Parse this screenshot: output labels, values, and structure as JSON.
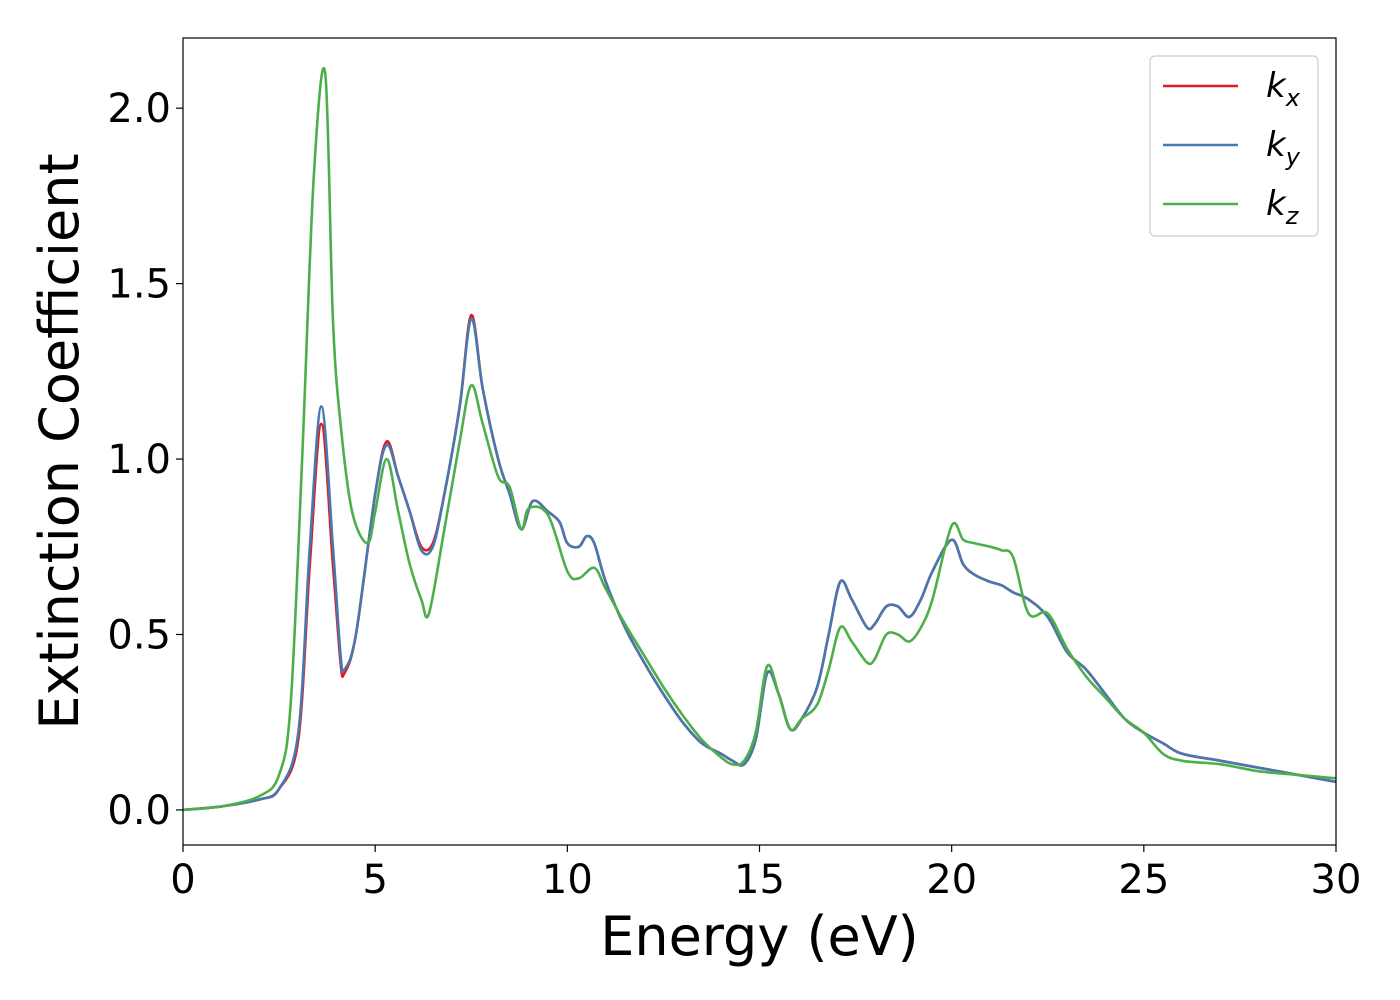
{
  "chart_data": {
    "type": "line",
    "xlabel": "Energy (eV)",
    "ylabel": "Extinction Coefficient",
    "xlim": [
      0,
      30
    ],
    "ylim": [
      -0.1,
      2.2
    ],
    "xticks": [
      0,
      5,
      10,
      15,
      20,
      25,
      30
    ],
    "xtick_labels": [
      "0",
      "5",
      "10",
      "15",
      "20",
      "25",
      "30"
    ],
    "yticks": [
      0.0,
      0.5,
      1.0,
      1.5,
      2.0
    ],
    "ytick_labels": [
      "0.0",
      "0.5",
      "1.0",
      "1.5",
      "2.0"
    ],
    "grid": false,
    "legend_position": "top-right",
    "series": [
      {
        "name": "k_x",
        "legend_base": "k",
        "legend_sub": "x",
        "color": "#e41a1c",
        "x": [
          0,
          1,
          2,
          2.5,
          3,
          3.3,
          3.6,
          3.9,
          4.1,
          4.2,
          4.5,
          5.0,
          5.3,
          5.6,
          5.9,
          6.2,
          6.5,
          6.8,
          7.2,
          7.5,
          7.8,
          8.2,
          8.5,
          8.8,
          9.1,
          9.5,
          9.8,
          10.0,
          10.3,
          10.5,
          10.7,
          11.0,
          11.5,
          12.0,
          12.5,
          13.0,
          13.5,
          14.0,
          14.3,
          14.6,
          14.9,
          15.2,
          15.5,
          15.8,
          16.1,
          16.5,
          16.8,
          17.1,
          17.4,
          17.8,
          18.0,
          18.3,
          18.6,
          18.9,
          19.2,
          19.5,
          20.0,
          20.3,
          20.6,
          21.0,
          21.3,
          21.6,
          22.0,
          22.5,
          23.0,
          23.5,
          24.0,
          24.5,
          25.0,
          25.5,
          26.0,
          27.0,
          28.0,
          29.0,
          30.0
        ],
        "values": [
          0.0,
          0.01,
          0.03,
          0.06,
          0.2,
          0.7,
          1.1,
          0.7,
          0.42,
          0.39,
          0.5,
          0.9,
          1.05,
          0.95,
          0.85,
          0.75,
          0.76,
          0.9,
          1.15,
          1.41,
          1.2,
          1.0,
          0.9,
          0.8,
          0.88,
          0.85,
          0.82,
          0.76,
          0.75,
          0.78,
          0.76,
          0.65,
          0.52,
          0.42,
          0.33,
          0.25,
          0.19,
          0.16,
          0.14,
          0.13,
          0.2,
          0.39,
          0.33,
          0.23,
          0.26,
          0.35,
          0.5,
          0.65,
          0.6,
          0.52,
          0.53,
          0.58,
          0.58,
          0.55,
          0.6,
          0.68,
          0.77,
          0.7,
          0.67,
          0.65,
          0.64,
          0.62,
          0.6,
          0.55,
          0.45,
          0.4,
          0.33,
          0.26,
          0.22,
          0.19,
          0.16,
          0.14,
          0.12,
          0.1,
          0.08
        ]
      },
      {
        "name": "k_y",
        "legend_base": "k",
        "legend_sub": "y",
        "color": "#4878b0",
        "x": [
          0,
          1,
          2,
          2.5,
          3,
          3.3,
          3.6,
          3.9,
          4.1,
          4.2,
          4.5,
          5.0,
          5.3,
          5.6,
          5.9,
          6.2,
          6.5,
          6.8,
          7.2,
          7.5,
          7.8,
          8.2,
          8.5,
          8.8,
          9.1,
          9.5,
          9.8,
          10.0,
          10.3,
          10.5,
          10.7,
          11.0,
          11.5,
          12.0,
          12.5,
          13.0,
          13.5,
          14.0,
          14.3,
          14.6,
          14.9,
          15.2,
          15.5,
          15.8,
          16.1,
          16.5,
          16.8,
          17.1,
          17.4,
          17.8,
          18.0,
          18.3,
          18.6,
          18.9,
          19.2,
          19.5,
          20.0,
          20.3,
          20.6,
          21.0,
          21.3,
          21.6,
          22.0,
          22.5,
          23.0,
          23.5,
          24.0,
          24.5,
          25.0,
          25.5,
          26.0,
          27.0,
          28.0,
          29.0,
          30.0
        ],
        "values": [
          0.0,
          0.01,
          0.03,
          0.06,
          0.22,
          0.75,
          1.15,
          0.75,
          0.44,
          0.4,
          0.5,
          0.9,
          1.04,
          0.95,
          0.85,
          0.74,
          0.75,
          0.9,
          1.15,
          1.4,
          1.2,
          1.0,
          0.9,
          0.8,
          0.88,
          0.85,
          0.82,
          0.76,
          0.75,
          0.78,
          0.76,
          0.65,
          0.52,
          0.42,
          0.33,
          0.25,
          0.19,
          0.16,
          0.14,
          0.13,
          0.2,
          0.39,
          0.33,
          0.23,
          0.26,
          0.35,
          0.5,
          0.65,
          0.6,
          0.52,
          0.53,
          0.58,
          0.58,
          0.55,
          0.6,
          0.68,
          0.77,
          0.7,
          0.67,
          0.65,
          0.64,
          0.62,
          0.6,
          0.55,
          0.45,
          0.4,
          0.33,
          0.26,
          0.22,
          0.19,
          0.16,
          0.14,
          0.12,
          0.1,
          0.08
        ]
      },
      {
        "name": "k_z",
        "legend_base": "k",
        "legend_sub": "z",
        "color": "#4daf4a",
        "x": [
          0,
          1,
          2,
          2.5,
          2.8,
          3.1,
          3.4,
          3.7,
          3.9,
          4.1,
          4.4,
          4.8,
          5.0,
          5.3,
          5.6,
          5.9,
          6.2,
          6.4,
          6.8,
          7.2,
          7.5,
          7.8,
          8.2,
          8.5,
          8.8,
          9.0,
          9.5,
          10.0,
          10.3,
          10.7,
          11.0,
          11.5,
          12.0,
          12.5,
          13.0,
          13.5,
          14.0,
          14.3,
          14.6,
          14.9,
          15.2,
          15.5,
          15.8,
          16.1,
          16.5,
          16.8,
          17.1,
          17.4,
          17.8,
          18.0,
          18.3,
          18.6,
          18.9,
          19.2,
          19.5,
          20.0,
          20.3,
          20.6,
          21.0,
          21.3,
          21.6,
          22.0,
          22.5,
          23.0,
          23.5,
          24.0,
          24.5,
          25.0,
          25.5,
          26.0,
          27.0,
          28.0,
          29.0,
          30.0
        ],
        "values": [
          0.0,
          0.01,
          0.04,
          0.1,
          0.3,
          1.0,
          1.8,
          2.1,
          1.4,
          1.1,
          0.85,
          0.76,
          0.85,
          1.0,
          0.85,
          0.7,
          0.6,
          0.56,
          0.8,
          1.05,
          1.21,
          1.1,
          0.95,
          0.92,
          0.8,
          0.86,
          0.84,
          0.68,
          0.66,
          0.69,
          0.63,
          0.53,
          0.44,
          0.35,
          0.27,
          0.2,
          0.15,
          0.13,
          0.14,
          0.22,
          0.41,
          0.33,
          0.23,
          0.26,
          0.3,
          0.4,
          0.52,
          0.48,
          0.42,
          0.43,
          0.5,
          0.5,
          0.48,
          0.52,
          0.6,
          0.81,
          0.77,
          0.76,
          0.75,
          0.74,
          0.72,
          0.56,
          0.56,
          0.46,
          0.38,
          0.32,
          0.26,
          0.22,
          0.16,
          0.14,
          0.13,
          0.11,
          0.1,
          0.09
        ]
      }
    ]
  }
}
